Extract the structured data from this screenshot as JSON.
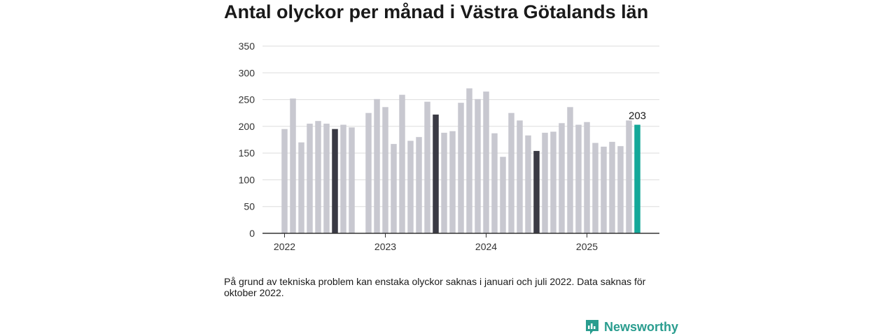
{
  "title": "Antal olyckor per månad i Västra Götalands län",
  "note": "På grund av tekniska problem kan enstaka olyckor saknas i januari och juli 2022. Data saknas för oktober 2022.",
  "brand": {
    "name": "Newsworthy",
    "icon": "bar-chart-speech-icon"
  },
  "colors": {
    "default": "#c8c8d0",
    "july": "#3a3a44",
    "latest": "#14a899",
    "axis": "#333333",
    "grid": "#dddddd"
  },
  "chart_data": {
    "type": "bar",
    "ylim": [
      0,
      350
    ],
    "yticks": [
      0,
      50,
      100,
      150,
      200,
      250,
      300,
      350
    ],
    "xticks": [
      "2022",
      "2023",
      "2024",
      "2025"
    ],
    "categories": [
      "2022-01",
      "2022-02",
      "2022-03",
      "2022-04",
      "2022-05",
      "2022-06",
      "2022-07",
      "2022-08",
      "2022-09",
      "2022-10",
      "2022-11",
      "2022-12",
      "2023-01",
      "2023-02",
      "2023-03",
      "2023-04",
      "2023-05",
      "2023-06",
      "2023-07",
      "2023-08",
      "2023-09",
      "2023-10",
      "2023-11",
      "2023-12",
      "2024-01",
      "2024-02",
      "2024-03",
      "2024-04",
      "2024-05",
      "2024-06",
      "2024-07",
      "2024-08",
      "2024-09",
      "2024-10",
      "2024-11",
      "2024-12",
      "2025-01",
      "2025-02",
      "2025-03",
      "2025-04",
      "2025-05",
      "2025-06",
      "2025-07"
    ],
    "values": [
      195,
      252,
      170,
      205,
      210,
      205,
      195,
      203,
      198,
      null,
      225,
      251,
      236,
      167,
      259,
      173,
      180,
      246,
      222,
      188,
      191,
      244,
      271,
      251,
      265,
      187,
      143,
      225,
      211,
      183,
      154,
      188,
      190,
      206,
      236,
      203,
      208,
      169,
      162,
      171,
      163,
      211,
      203
    ],
    "highlight_months": [
      "2022-07",
      "2023-07",
      "2024-07"
    ],
    "latest_label": "203"
  }
}
